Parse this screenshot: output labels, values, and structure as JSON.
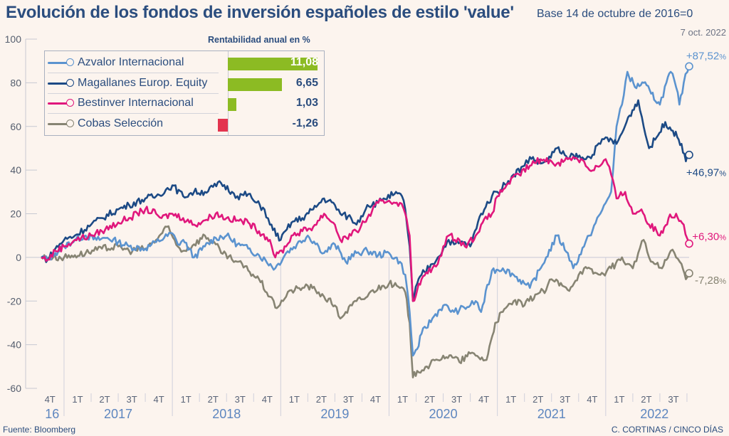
{
  "header": {
    "title": "Evolución de los fondos de inversión españoles de estilo 'value'",
    "subtitle": "Base 14 de octubre de 2016=0"
  },
  "legend": {
    "heading": "Rentabilidad anual en %",
    "bar_scale_max": 11.08,
    "bar_positive_color": "#8cbb23",
    "bar_negative_color": "#e3344f"
  },
  "end_date_label": "7 oct. 2022",
  "footer": {
    "source": "Fuente: Bloomberg",
    "credit": "C. CORTINAS / CINCO DÍAS"
  },
  "chart_data": {
    "type": "line",
    "title": "Evolución de los fondos de inversión españoles de estilo 'value'",
    "subtitle": "Base 14 de octubre de 2016=0",
    "xlabel": "",
    "ylabel": "",
    "ylim": [
      -60,
      100
    ],
    "xlim": [
      2016.79,
      2022.77
    ],
    "yticks": [
      -60,
      -40,
      -20,
      0,
      20,
      40,
      60,
      80,
      100
    ],
    "grid": "zero-line",
    "legend_position": "top-left",
    "quarter_ticks": [
      {
        "label": "4T",
        "x": 2016.87
      },
      {
        "label": "1T",
        "x": 2017.125
      },
      {
        "label": "2T",
        "x": 2017.375
      },
      {
        "label": "3T",
        "x": 2017.625
      },
      {
        "label": "4T",
        "x": 2017.875
      },
      {
        "label": "1T",
        "x": 2018.125
      },
      {
        "label": "2T",
        "x": 2018.375
      },
      {
        "label": "3T",
        "x": 2018.625
      },
      {
        "label": "4T",
        "x": 2018.875
      },
      {
        "label": "1T",
        "x": 2019.125
      },
      {
        "label": "2T",
        "x": 2019.375
      },
      {
        "label": "3T",
        "x": 2019.625
      },
      {
        "label": "4T",
        "x": 2019.875
      },
      {
        "label": "1T",
        "x": 2020.125
      },
      {
        "label": "2T",
        "x": 2020.375
      },
      {
        "label": "3T",
        "x": 2020.625
      },
      {
        "label": "4T",
        "x": 2020.875
      },
      {
        "label": "1T",
        "x": 2021.125
      },
      {
        "label": "2T",
        "x": 2021.375
      },
      {
        "label": "3T",
        "x": 2021.625
      },
      {
        "label": "4T",
        "x": 2021.875
      },
      {
        "label": "1T",
        "x": 2022.125
      },
      {
        "label": "2T",
        "x": 2022.375
      },
      {
        "label": "3T",
        "x": 2022.625
      }
    ],
    "year_labels": [
      {
        "label": "16",
        "x": 2016.89
      },
      {
        "label": "2017",
        "x": 2017.5
      },
      {
        "label": "2018",
        "x": 2018.5
      },
      {
        "label": "2019",
        "x": 2019.5
      },
      {
        "label": "2020",
        "x": 2020.5
      },
      {
        "label": "2021",
        "x": 2021.5
      },
      {
        "label": "2022",
        "x": 2022.45
      }
    ],
    "year_separators": [
      2017,
      2018,
      2019,
      2020,
      2021,
      2022
    ],
    "series": [
      {
        "name": "Azvalor Internacional",
        "color": "#5b93cf",
        "annual_return": 11.08,
        "annual_return_label": "11,08",
        "end_value": 87.52,
        "end_label": "+87,52",
        "x": [
          2016.79,
          2016.85,
          2016.92,
          2017.0,
          2017.1,
          2017.2,
          2017.3,
          2017.4,
          2017.5,
          2017.6,
          2017.75,
          2017.85,
          2018.0,
          2018.05,
          2018.1,
          2018.2,
          2018.3,
          2018.4,
          2018.5,
          2018.6,
          2018.7,
          2018.8,
          2018.95,
          2019.05,
          2019.15,
          2019.25,
          2019.35,
          2019.4,
          2019.5,
          2019.6,
          2019.7,
          2019.8,
          2019.9,
          2020.0,
          2020.1,
          2020.15,
          2020.19,
          2020.22,
          2020.26,
          2020.3,
          2020.4,
          2020.5,
          2020.6,
          2020.65,
          2020.75,
          2020.8,
          2020.85,
          2020.95,
          2021.05,
          2021.15,
          2021.25,
          2021.3,
          2021.4,
          2021.45,
          2021.55,
          2021.65,
          2021.7,
          2021.8,
          2021.85,
          2021.95,
          2022.0,
          2022.05,
          2022.1,
          2022.15,
          2022.2,
          2022.27,
          2022.35,
          2022.42,
          2022.5,
          2022.56,
          2022.6,
          2022.65,
          2022.68,
          2022.72,
          2022.77
        ],
        "values": [
          0,
          -1,
          2,
          5,
          8,
          10,
          8,
          9,
          7,
          5,
          4,
          7,
          11,
          6,
          8,
          0,
          5,
          9,
          10,
          6,
          4,
          1,
          -5,
          2,
          6,
          10,
          5,
          2,
          6,
          -2,
          2,
          3,
          1,
          2,
          -2,
          -8,
          -25,
          -45,
          -42,
          -35,
          -28,
          -22,
          -25,
          -24,
          -22,
          -20,
          -25,
          -6,
          -5,
          -8,
          -12,
          -14,
          -5,
          0,
          10,
          2,
          -5,
          5,
          10,
          20,
          25,
          30,
          60,
          70,
          85,
          78,
          80,
          75,
          70,
          80,
          85,
          78,
          70,
          80,
          87.52
        ]
      },
      {
        "name": "Magallanes Europ. Equity",
        "color": "#1c4a85",
        "annual_return": 6.65,
        "annual_return_label": "6,65",
        "end_value": 46.97,
        "end_label": "+46,97",
        "x": [
          2016.79,
          2016.85,
          2016.92,
          2017.0,
          2017.1,
          2017.25,
          2017.35,
          2017.5,
          2017.6,
          2017.75,
          2017.85,
          2018.0,
          2018.1,
          2018.2,
          2018.3,
          2018.45,
          2018.55,
          2018.6,
          2018.7,
          2018.75,
          2018.85,
          2018.9,
          2019.0,
          2019.1,
          2019.2,
          2019.3,
          2019.4,
          2019.5,
          2019.55,
          2019.65,
          2019.7,
          2019.8,
          2019.9,
          2019.95,
          2020.05,
          2020.12,
          2020.15,
          2020.19,
          2020.22,
          2020.26,
          2020.3,
          2020.4,
          2020.45,
          2020.55,
          2020.6,
          2020.7,
          2020.75,
          2020.85,
          2020.95,
          2021.0,
          2021.1,
          2021.15,
          2021.25,
          2021.3,
          2021.4,
          2021.45,
          2021.55,
          2021.65,
          2021.7,
          2021.8,
          2021.85,
          2021.95,
          2022.0,
          2022.1,
          2022.15,
          2022.22,
          2022.3,
          2022.35,
          2022.4,
          2022.47,
          2022.55,
          2022.62,
          2022.7,
          2022.74,
          2022.77
        ],
        "values": [
          0,
          -1,
          4,
          8,
          10,
          15,
          18,
          22,
          24,
          27,
          28,
          33,
          28,
          30,
          30,
          34,
          30,
          28,
          29,
          26,
          22,
          15,
          8,
          16,
          18,
          22,
          27,
          24,
          20,
          18,
          15,
          24,
          25,
          27,
          29,
          28,
          22,
          5,
          -20,
          -12,
          -8,
          -3,
          0,
          8,
          6,
          7,
          5,
          20,
          28,
          30,
          35,
          38,
          42,
          46,
          43,
          44,
          50,
          45,
          47,
          45,
          46,
          52,
          55,
          52,
          57,
          65,
          72,
          60,
          50,
          55,
          62,
          58,
          52,
          44,
          47
        ]
      },
      {
        "name": "Bestinver Internacional",
        "color": "#e0177c",
        "annual_return": 1.03,
        "annual_return_label": "1,03",
        "end_value": 6.3,
        "end_label": "+6,30",
        "x": [
          2016.79,
          2016.85,
          2016.92,
          2017.0,
          2017.1,
          2017.25,
          2017.35,
          2017.5,
          2017.6,
          2017.75,
          2017.85,
          2017.9,
          2018.0,
          2018.1,
          2018.2,
          2018.3,
          2018.4,
          2018.5,
          2018.6,
          2018.7,
          2018.8,
          2018.9,
          2018.95,
          2019.05,
          2019.1,
          2019.2,
          2019.3,
          2019.4,
          2019.5,
          2019.55,
          2019.65,
          2019.7,
          2019.8,
          2019.9,
          2020.0,
          2020.1,
          2020.15,
          2020.19,
          2020.22,
          2020.26,
          2020.3,
          2020.4,
          2020.45,
          2020.5,
          2020.55,
          2020.65,
          2020.7,
          2020.8,
          2020.85,
          2020.95,
          2021.0,
          2021.1,
          2021.2,
          2021.3,
          2021.4,
          2021.5,
          2021.55,
          2021.65,
          2021.7,
          2021.8,
          2021.85,
          2021.95,
          2022.0,
          2022.05,
          2022.1,
          2022.18,
          2022.25,
          2022.33,
          2022.4,
          2022.47,
          2022.5,
          2022.58,
          2022.65,
          2022.72,
          2022.77
        ],
        "values": [
          0,
          -1,
          3,
          5,
          8,
          10,
          12,
          16,
          18,
          22,
          20,
          18,
          20,
          18,
          15,
          17,
          20,
          18,
          17,
          16,
          12,
          8,
          0,
          5,
          10,
          12,
          14,
          20,
          15,
          8,
          10,
          12,
          18,
          25,
          26,
          25,
          20,
          10,
          -20,
          -15,
          -10,
          -5,
          -3,
          5,
          10,
          8,
          5,
          10,
          15,
          20,
          28,
          34,
          38,
          42,
          45,
          44,
          43,
          45,
          46,
          44,
          40,
          42,
          45,
          38,
          27,
          30,
          20,
          22,
          15,
          12,
          10,
          18,
          20,
          15,
          6.3
        ]
      },
      {
        "name": "Cobas Selección",
        "color": "#878473",
        "annual_return": -1.26,
        "annual_return_label": "-1,26",
        "end_value": -7.28,
        "end_label": "-7,28",
        "x": [
          2016.79,
          2016.9,
          2017.0,
          2017.1,
          2017.2,
          2017.35,
          2017.5,
          2017.6,
          2017.75,
          2017.85,
          2017.95,
          2018.05,
          2018.1,
          2018.2,
          2018.3,
          2018.4,
          2018.45,
          2018.55,
          2018.6,
          2018.7,
          2018.8,
          2018.9,
          2018.95,
          2019.05,
          2019.1,
          2019.2,
          2019.25,
          2019.35,
          2019.4,
          2019.5,
          2019.55,
          2019.6,
          2019.7,
          2019.8,
          2019.85,
          2019.95,
          2020.0,
          2020.1,
          2020.15,
          2020.19,
          2020.22,
          2020.26,
          2020.35,
          2020.45,
          2020.5,
          2020.6,
          2020.65,
          2020.75,
          2020.8,
          2020.9,
          2020.98,
          2021.05,
          2021.15,
          2021.25,
          2021.35,
          2021.45,
          2021.5,
          2021.6,
          2021.65,
          2021.75,
          2021.8,
          2021.9,
          2021.95,
          2022.05,
          2022.15,
          2022.2,
          2022.25,
          2022.3,
          2022.35,
          2022.4,
          2022.45,
          2022.52,
          2022.6,
          2022.65,
          2022.7,
          2022.74,
          2022.77
        ],
        "values": [
          0,
          0,
          0,
          1,
          2,
          4,
          5,
          3,
          4,
          8,
          14,
          5,
          3,
          6,
          10,
          6,
          2,
          -1,
          -2,
          -6,
          -10,
          -18,
          -23,
          -18,
          -15,
          -14,
          -13,
          -16,
          -18,
          -22,
          -28,
          -25,
          -20,
          -18,
          -15,
          -13,
          -12,
          -14,
          -16,
          -30,
          -55,
          -52,
          -50,
          -47,
          -45,
          -46,
          -48,
          -44,
          -45,
          -47,
          -30,
          -25,
          -20,
          -22,
          -17,
          -15,
          -10,
          -13,
          -15,
          -8,
          -5,
          -7,
          -8,
          -5,
          0,
          -3,
          -5,
          2,
          8,
          0,
          -3,
          -5,
          3,
          0,
          -3,
          -10,
          -7.28
        ]
      }
    ]
  }
}
